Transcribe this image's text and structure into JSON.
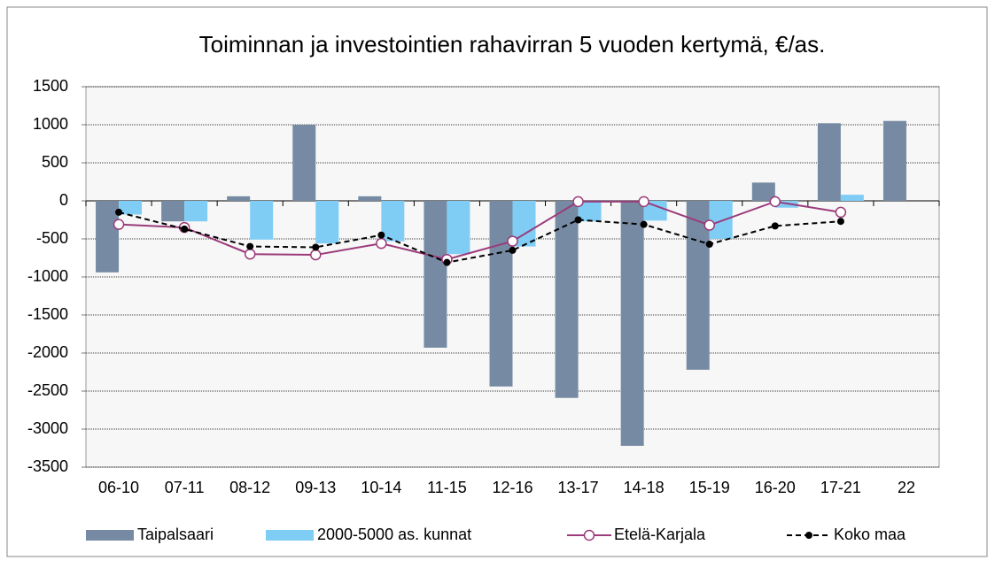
{
  "chart_data": {
    "type": "bar_line",
    "title": "Toiminnan ja investointien rahavirran 5 vuoden kertymä, €/as.",
    "categories": [
      "06-10",
      "07-11",
      "08-12",
      "09-13",
      "10-14",
      "11-15",
      "12-16",
      "13-17",
      "14-18",
      "15-19",
      "16-20",
      "17-21",
      "22"
    ],
    "series": [
      {
        "name": "Taipalsaari",
        "kind": "bar",
        "color": "#768ba3",
        "values": [
          -940,
          -270,
          60,
          1000,
          60,
          -1930,
          -2440,
          -2590,
          -3220,
          -2220,
          240,
          1020,
          1050
        ]
      },
      {
        "name": "2000-5000 as. kunnat",
        "kind": "bar",
        "color": "#7fcdf5",
        "values": [
          -180,
          -270,
          -510,
          -560,
          -530,
          -700,
          -600,
          -270,
          -260,
          -500,
          -90,
          80,
          null
        ]
      },
      {
        "name": "Etelä-Karjala",
        "kind": "line",
        "color": "#9b3b7a",
        "values": [
          -310,
          -350,
          -700,
          -710,
          -560,
          -770,
          -530,
          -10,
          -10,
          -320,
          -10,
          -150,
          null
        ]
      },
      {
        "name": "Koko maa",
        "kind": "dashed",
        "color": "#000000",
        "values": [
          -150,
          -370,
          -600,
          -610,
          -450,
          -810,
          -650,
          -250,
          -310,
          -570,
          -330,
          -270,
          null
        ]
      }
    ],
    "ylim": [
      -3500,
      1500
    ],
    "yticks": [
      -3500,
      -3000,
      -2500,
      -2000,
      -1500,
      -1000,
      -500,
      0,
      500,
      1000,
      1500
    ],
    "grid": true
  }
}
